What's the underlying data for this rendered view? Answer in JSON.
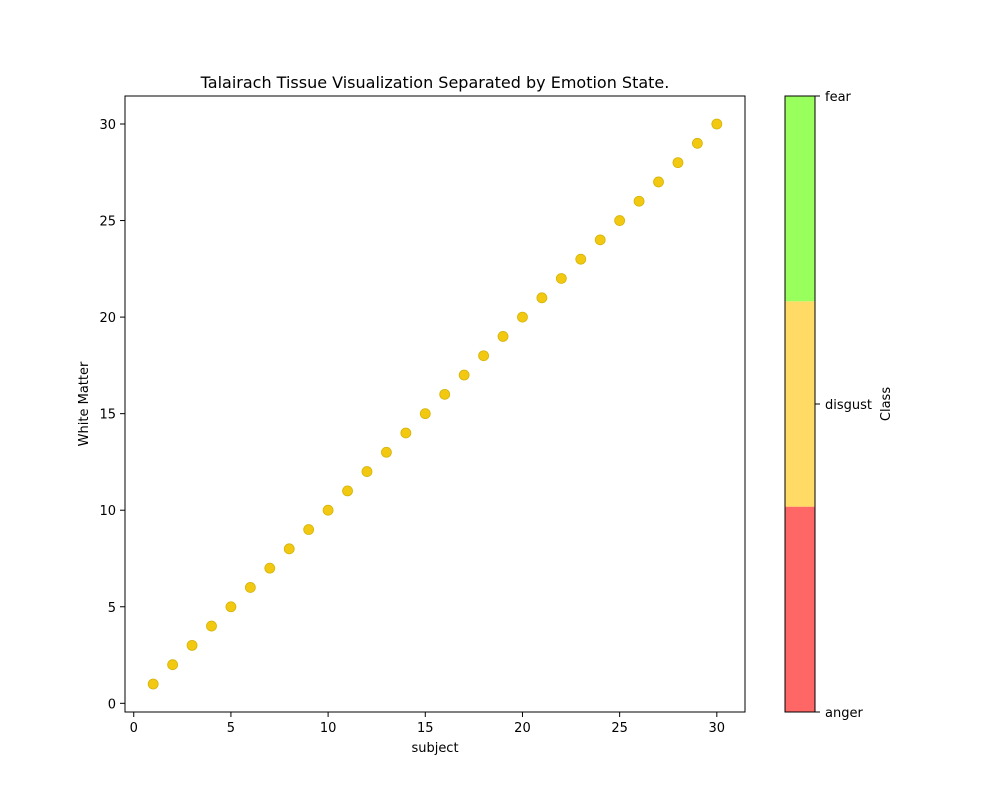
{
  "chart_data": {
    "type": "scatter",
    "title": "Talairach Tissue Visualization Separated by Emotion State.",
    "xlabel": "subject",
    "ylabel": "White Matter",
    "xlim": [
      -0.45,
      31.45
    ],
    "ylim": [
      -0.45,
      31.45
    ],
    "xticks": [
      0,
      5,
      10,
      15,
      20,
      25,
      30
    ],
    "yticks": [
      0,
      5,
      10,
      15,
      20,
      25,
      30
    ],
    "grid": false,
    "marker_color": "#f2c811",
    "marker_edge_color": "#d4b40a",
    "series": [
      {
        "x": [
          1,
          2,
          3,
          4,
          5,
          6,
          7,
          8,
          9,
          10,
          11,
          12,
          13,
          14,
          15,
          16,
          17,
          18,
          19,
          20,
          21,
          22,
          23,
          24,
          25,
          26,
          27,
          28,
          29,
          30
        ],
        "y": [
          1,
          2,
          3,
          4,
          5,
          6,
          7,
          8,
          9,
          10,
          11,
          12,
          13,
          14,
          15,
          16,
          17,
          18,
          19,
          20,
          21,
          22,
          23,
          24,
          25,
          26,
          27,
          28,
          29,
          30
        ]
      }
    ],
    "colorbar": {
      "label": "Class",
      "classes": [
        {
          "name": "anger",
          "color": "#ff6666"
        },
        {
          "name": "disgust",
          "color": "#ffdb66"
        },
        {
          "name": "fear",
          "color": "#99ff5c"
        }
      ]
    }
  }
}
